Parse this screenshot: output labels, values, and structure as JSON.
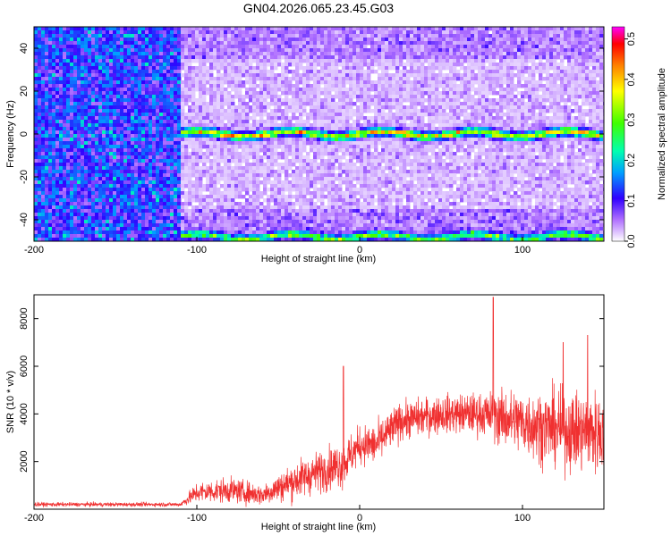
{
  "title": "GN04.2026.065.23.45.G03",
  "chart_data": [
    {
      "type": "heatmap",
      "xlabel": "Height of straight line (km)",
      "ylabel": "Frequency (Hz)",
      "xlim": [
        -200,
        150
      ],
      "ylim": [
        -50,
        50
      ],
      "x_ticks": [
        -200,
        -100,
        0,
        100
      ],
      "y_ticks": [
        -40,
        -20,
        0,
        20,
        40
      ],
      "colorbar": {
        "label": "Normalized spectral amplitude",
        "range": [
          0,
          0.53
        ],
        "ticks": [
          0,
          0.1,
          0.2,
          0.3,
          0.4,
          0.5
        ],
        "tick_labels": [
          "0.0",
          "0.1",
          "0.2",
          "0.3",
          "0.4",
          "0.5"
        ]
      },
      "features": [
        {
          "kind": "band",
          "x_start": -110,
          "x_end": 150,
          "frequency_center": 0,
          "peak_amplitude": 0.45
        },
        {
          "kind": "band",
          "x_start": -110,
          "x_end": 150,
          "frequency_center": -48,
          "peak_amplitude": 0.3
        }
      ]
    },
    {
      "type": "line",
      "xlabel": "Height of straight line (km)",
      "ylabel": "SNR (10 * v/v)",
      "xlim": [
        -200,
        150
      ],
      "ylim": [
        0,
        9000
      ],
      "x_ticks": [
        -200,
        -100,
        0,
        100
      ],
      "y_ticks": [
        2000,
        4000,
        6000,
        8000
      ],
      "series": [
        {
          "color": "#f03030",
          "envelope": [
            {
              "x": -200,
              "mean": 200,
              "spread": 100
            },
            {
              "x": -110,
              "mean": 200,
              "spread": 100
            },
            {
              "x": -100,
              "mean": 700,
              "spread": 500
            },
            {
              "x": -80,
              "mean": 800,
              "spread": 600
            },
            {
              "x": -60,
              "mean": 600,
              "spread": 500
            },
            {
              "x": -40,
              "mean": 1200,
              "spread": 900
            },
            {
              "x": -20,
              "mean": 1700,
              "spread": 1000
            },
            {
              "x": -10,
              "mean": 1900,
              "spread": 1100
            },
            {
              "x": 0,
              "mean": 2700,
              "spread": 900
            },
            {
              "x": 10,
              "mean": 2700,
              "spread": 1000
            },
            {
              "x": 25,
              "mean": 3700,
              "spread": 900
            },
            {
              "x": 50,
              "mean": 4000,
              "spread": 900
            },
            {
              "x": 75,
              "mean": 4000,
              "spread": 1000
            },
            {
              "x": 90,
              "mean": 3800,
              "spread": 1400
            },
            {
              "x": 110,
              "mean": 3500,
              "spread": 1700
            },
            {
              "x": 130,
              "mean": 3300,
              "spread": 1900
            },
            {
              "x": 150,
              "mean": 3200,
              "spread": 2000
            }
          ],
          "peaks": [
            {
              "x": -10,
              "y": 6000
            },
            {
              "x": 82,
              "y": 8900
            },
            {
              "x": 125,
              "y": 7000
            },
            {
              "x": 140,
              "y": 7300
            }
          ]
        }
      ]
    }
  ]
}
